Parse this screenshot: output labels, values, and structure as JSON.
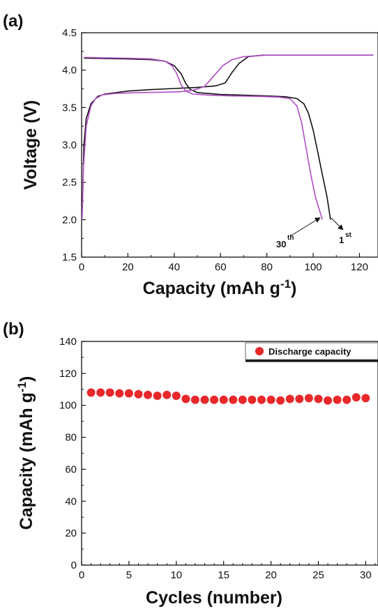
{
  "chart_data": [
    {
      "panel": "(a)",
      "type": "line",
      "xlabel": "Capacity (mAh g-1)",
      "ylabel": "Voltage (V)",
      "xlim": [
        0,
        128
      ],
      "ylim": [
        1.5,
        4.5
      ],
      "xticks": [
        "0",
        "20",
        "40",
        "60",
        "80",
        "100",
        "120"
      ],
      "yticks": [
        "1.5",
        "2.0",
        "2.5",
        "3.0",
        "3.5",
        "4.0",
        "4.5"
      ],
      "colors": {
        "1st": "#111111",
        "30th": "#b04cc4"
      },
      "series": [
        {
          "cycle": "1st",
          "segment": "charge",
          "color": "#111111",
          "points": [
            [
              1,
              4.16
            ],
            [
              10,
              4.155
            ],
            [
              20,
              4.15
            ],
            [
              30,
              4.14
            ],
            [
              36,
              4.12
            ],
            [
              40,
              4.06
            ],
            [
              43,
              3.95
            ],
            [
              45,
              3.82
            ],
            [
              47,
              3.74
            ],
            [
              50,
              3.7
            ],
            [
              60,
              3.675
            ],
            [
              70,
              3.665
            ],
            [
              80,
              3.655
            ],
            [
              88,
              3.645
            ],
            [
              93,
              3.62
            ],
            [
              96,
              3.55
            ],
            [
              98,
              3.42
            ],
            [
              100,
              3.2
            ],
            [
              102,
              2.9
            ],
            [
              104,
              2.6
            ],
            [
              106,
              2.3
            ],
            [
              107.5,
              2.0
            ]
          ]
        },
        {
          "cycle": "1st",
          "segment": "discharge",
          "color": "#111111",
          "points": [
            [
              0.2,
              2.05
            ],
            [
              1,
              3.0
            ],
            [
              2,
              3.35
            ],
            [
              4,
              3.55
            ],
            [
              7,
              3.65
            ],
            [
              10,
              3.68
            ],
            [
              20,
              3.72
            ],
            [
              30,
              3.74
            ],
            [
              40,
              3.755
            ],
            [
              50,
              3.77
            ],
            [
              58,
              3.79
            ],
            [
              62,
              3.83
            ],
            [
              65,
              3.97
            ],
            [
              68,
              4.09
            ],
            [
              72,
              4.18
            ],
            [
              78,
              4.2
            ],
            [
              90,
              4.2
            ],
            [
              105,
              4.2
            ],
            [
              126,
              4.2
            ]
          ]
        },
        {
          "cycle": "30th",
          "segment": "charge",
          "color": "#b04cc4",
          "points": [
            [
              1,
              4.17
            ],
            [
              10,
              4.165
            ],
            [
              20,
              4.16
            ],
            [
              30,
              4.15
            ],
            [
              36,
              4.12
            ],
            [
              39,
              4.06
            ],
            [
              41,
              3.96
            ],
            [
              43,
              3.8
            ],
            [
              45,
              3.72
            ],
            [
              48,
              3.68
            ],
            [
              55,
              3.665
            ],
            [
              65,
              3.655
            ],
            [
              75,
              3.65
            ],
            [
              85,
              3.64
            ],
            [
              90,
              3.62
            ],
            [
              93,
              3.52
            ],
            [
              95,
              3.3
            ],
            [
              97,
              2.95
            ],
            [
              99,
              2.6
            ],
            [
              101,
              2.3
            ],
            [
              104,
              2.0
            ]
          ]
        },
        {
          "cycle": "30th",
          "segment": "discharge",
          "color": "#b04cc4",
          "points": [
            [
              0.2,
              2.0
            ],
            [
              0.8,
              2.7
            ],
            [
              2,
              3.25
            ],
            [
              4,
              3.52
            ],
            [
              6,
              3.62
            ],
            [
              9,
              3.67
            ],
            [
              15,
              3.69
            ],
            [
              25,
              3.7
            ],
            [
              35,
              3.705
            ],
            [
              42,
              3.71
            ],
            [
              48,
              3.73
            ],
            [
              53,
              3.78
            ],
            [
              57,
              3.92
            ],
            [
              61,
              4.06
            ],
            [
              65,
              4.14
            ],
            [
              70,
              4.18
            ],
            [
              80,
              4.2
            ],
            [
              95,
              4.2
            ],
            [
              126,
              4.2
            ]
          ]
        }
      ],
      "annotations": [
        {
          "base": "30",
          "sup": "th"
        },
        {
          "base": "1",
          "sup": "st"
        }
      ]
    },
    {
      "panel": "(b)",
      "type": "scatter",
      "xlabel": "Cycles (number)",
      "ylabel": "Capacity (mAh g-1)",
      "xlim": [
        0,
        30
      ],
      "ylim": [
        0,
        140
      ],
      "xticks": [
        "0",
        "5",
        "10",
        "15",
        "20",
        "25",
        "30"
      ],
      "yticks": [
        "0",
        "20",
        "40",
        "60",
        "80",
        "100",
        "120",
        "140"
      ],
      "legend": {
        "label": "Discharge capacity",
        "position": "top-right"
      },
      "marker_color": "#e8282b",
      "x": [
        1,
        2,
        3,
        4,
        5,
        6,
        7,
        8,
        9,
        10,
        11,
        12,
        13,
        14,
        15,
        16,
        17,
        18,
        19,
        20,
        21,
        22,
        23,
        24,
        25,
        26,
        27,
        28,
        29,
        30
      ],
      "y": [
        108,
        108,
        108,
        107.5,
        107.5,
        107,
        106.5,
        106,
        106.5,
        106,
        104,
        103.5,
        103.5,
        103.5,
        103.5,
        103.5,
        103.5,
        103.5,
        103.5,
        103.5,
        103,
        104,
        104,
        104.5,
        104,
        103,
        103.5,
        103.5,
        105,
        104.5
      ]
    }
  ]
}
